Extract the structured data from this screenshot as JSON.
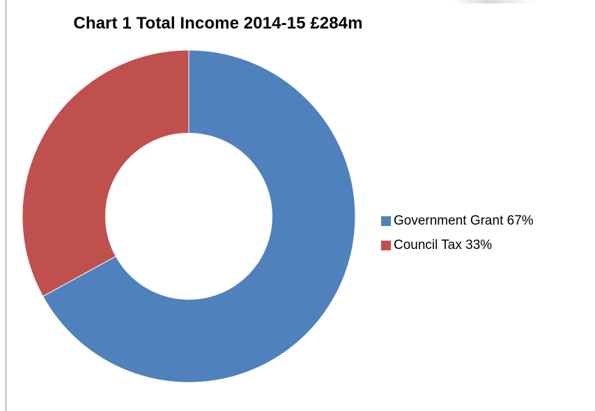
{
  "chart_data": {
    "type": "donut",
    "title": "Chart 1 Total Income 2014-15 £284m",
    "categories": [
      "Government  Grant 67%",
      "Council Tax 33%"
    ],
    "values": [
      67,
      33
    ],
    "colors": [
      "#4f81bd",
      "#c0504d"
    ],
    "legend_position": "right",
    "hole_ratio": 0.5
  }
}
